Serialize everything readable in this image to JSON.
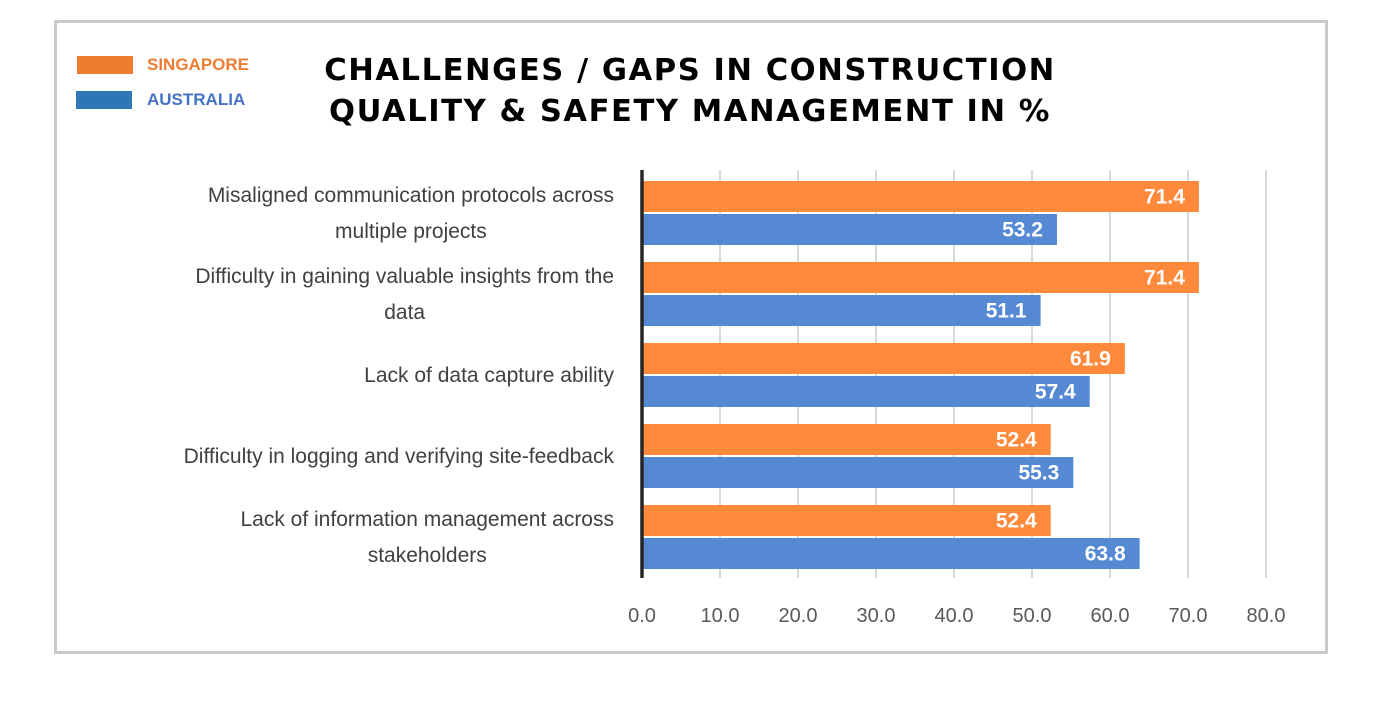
{
  "chart_data": {
    "type": "bar",
    "orientation": "horizontal",
    "title": "CHALLENGES / GAPS IN CONSTRUCTION QUALITY & SAFETY MANAGEMENT IN %",
    "title_lines": [
      "CHALLENGES / GAPS IN CONSTRUCTION",
      "QUALITY & SAFETY MANAGEMENT IN %"
    ],
    "xlabel": "",
    "ylabel": "",
    "xlim": [
      0,
      80
    ],
    "x_ticks": [
      "0.0",
      "10.0",
      "20.0",
      "30.0",
      "40.0",
      "50.0",
      "60.0",
      "70.0",
      "80.0"
    ],
    "grid": true,
    "legend_position": "top-left",
    "categories": [
      [
        "Misaligned communication protocols across",
        "multiple projects"
      ],
      [
        "Difficulty in gaining valuable insights from the",
        "data"
      ],
      [
        "Lack of data capture ability"
      ],
      [
        "Difficulty in logging and verifying site-feedback"
      ],
      [
        "Lack of information management across",
        "stakeholders"
      ]
    ],
    "series": [
      {
        "name": "SINGAPORE",
        "color": "#FF8A3C",
        "legend_color": "#ED7D31",
        "label_color": "#ED7D31",
        "values": [
          71.4,
          71.4,
          61.9,
          52.4,
          52.4
        ],
        "labels": [
          "71.4",
          "71.4",
          "61.9",
          "52.4",
          "52.4"
        ]
      },
      {
        "name": "AUSTRALIA",
        "color": "#5589D3",
        "legend_color": "#2E75B6",
        "label_color": "#4472C4",
        "values": [
          53.2,
          51.1,
          57.4,
          55.3,
          63.8
        ],
        "labels": [
          "53.2",
          "51.1",
          "57.4",
          "55.3",
          "63.8"
        ]
      }
    ]
  }
}
